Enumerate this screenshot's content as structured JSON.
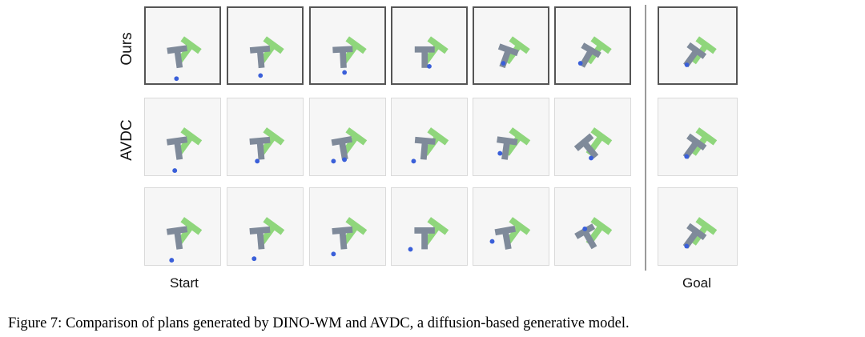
{
  "rows": [
    {
      "label": "Ours",
      "style": "ours"
    },
    {
      "label": "AVDC",
      "style": "plain"
    },
    {
      "label": "",
      "style": "plain"
    }
  ],
  "col_labels": {
    "start": "Start",
    "goal": "Goal"
  },
  "caption": "Figure 7: Comparison of plans generated by DINO-WM and AVDC, a diffusion-based generative model.",
  "colors": {
    "target": "#8fd67c",
    "block": "#7f8a9a",
    "agent": "#3a5fd9"
  },
  "frames": [
    [
      {
        "rot": -8,
        "agent": [
          [
            40,
            92
          ]
        ]
      },
      {
        "rot": -5,
        "agent": [
          [
            42,
            88
          ]
        ]
      },
      {
        "rot": -3,
        "agent": [
          [
            44,
            84
          ]
        ]
      },
      {
        "rot": 0,
        "agent": [
          [
            48,
            76
          ]
        ]
      },
      {
        "rot": 20,
        "agent": [
          [
            38,
            72
          ]
        ]
      },
      {
        "rot": 30,
        "agent": [
          [
            32,
            72
          ]
        ]
      },
      {
        "rot": 36,
        "agent": [
          [
            34,
            74
          ]
        ]
      }
    ],
    [
      {
        "rot": -8,
        "agent": [
          [
            38,
            92
          ]
        ]
      },
      {
        "rot": -5,
        "agent": [
          [
            38,
            80
          ]
        ]
      },
      {
        "rot": -10,
        "agent": [
          [
            30,
            80
          ],
          [
            44,
            78
          ]
        ]
      },
      {
        "rot": 5,
        "agent": [
          [
            28,
            80
          ]
        ]
      },
      {
        "rot": 8,
        "agent": [
          [
            34,
            70
          ]
        ]
      },
      {
        "rot": -40,
        "agent": [
          [
            46,
            76
          ]
        ]
      },
      {
        "rot": 36,
        "agent": [
          [
            34,
            74
          ]
        ]
      }
    ],
    [
      {
        "rot": -8,
        "agent": [
          [
            34,
            92
          ]
        ]
      },
      {
        "rot": -5,
        "agent": [
          [
            34,
            90
          ]
        ]
      },
      {
        "rot": -5,
        "agent": [
          [
            30,
            84
          ]
        ]
      },
      {
        "rot": 0,
        "agent": [
          [
            24,
            78
          ]
        ]
      },
      {
        "rot": -10,
        "agent": [
          [
            24,
            68
          ]
        ]
      },
      {
        "rot": -30,
        "agent": [
          [
            38,
            52
          ]
        ]
      },
      {
        "rot": 36,
        "agent": [
          [
            34,
            74
          ]
        ]
      }
    ]
  ]
}
